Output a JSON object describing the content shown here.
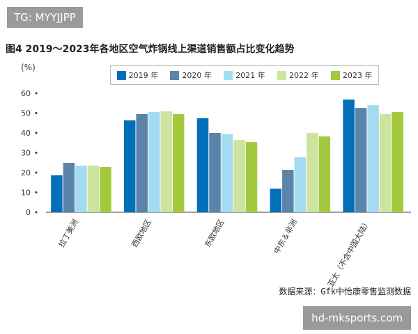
{
  "watermark_top": "TG: MYYJJPP",
  "watermark_bottom": "hd-mksports.com",
  "source": "数据来源：Gfk中怡康零售监测数据",
  "chart_data": {
    "type": "bar",
    "title": "图4  2019～2023年各地区空气炸锅线上渠道销售额占比变化趋势",
    "ylabel": "(%)",
    "ylim": [
      0,
      60
    ],
    "yticks": [
      0,
      10,
      20,
      30,
      40,
      50,
      60
    ],
    "grid": false,
    "legend_position": "top",
    "categories": [
      "拉丁美洲",
      "西欧地区",
      "东欧地区",
      "中东＆非洲",
      "亚太（不含中国大陆）"
    ],
    "series": [
      {
        "name": "2019 年",
        "color": "#0070b8",
        "values": [
          18.6,
          46.3,
          47.4,
          11.9,
          56.8
        ]
      },
      {
        "name": "2020 年",
        "color": "#5b84aa",
        "values": [
          24.9,
          49.5,
          40.0,
          21.4,
          52.6
        ]
      },
      {
        "name": "2021 年",
        "color": "#a3dbf1",
        "values": [
          23.5,
          50.5,
          39.3,
          27.7,
          54.0
        ]
      },
      {
        "name": "2022 年",
        "color": "#cde3a0",
        "values": [
          23.5,
          50.9,
          36.5,
          40.0,
          49.5
        ]
      },
      {
        "name": "2023 年",
        "color": "#a3c93c",
        "values": [
          22.8,
          49.5,
          35.4,
          38.2,
          50.5
        ]
      }
    ]
  }
}
